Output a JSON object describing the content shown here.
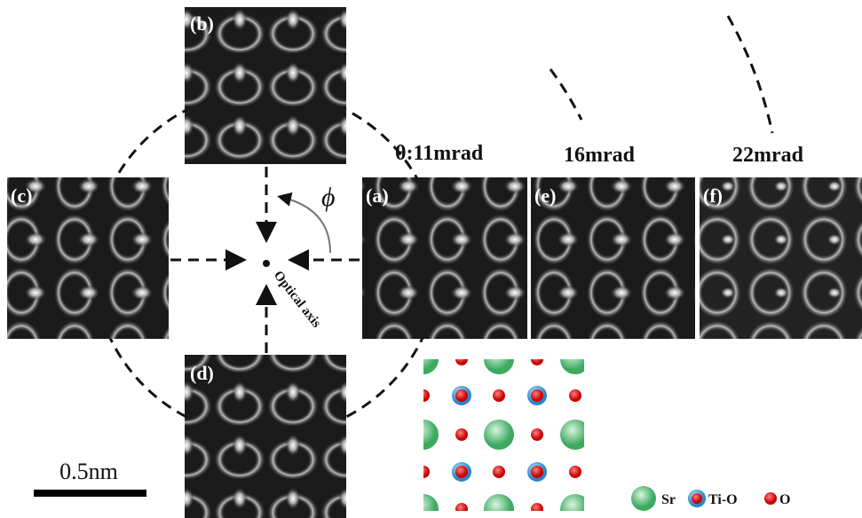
{
  "panels": [
    "(a)",
    "(b)",
    "(c)",
    "(d)",
    "(e)",
    "(f)"
  ],
  "angle_labels": [
    "θ:11mrad",
    "16mrad",
    "22mrad"
  ],
  "phi": "ϕ",
  "optical_axis": "Optical axis",
  "scale_bar": "0.5nm",
  "legend": [
    "Sr",
    "Ti-O",
    "O"
  ]
}
